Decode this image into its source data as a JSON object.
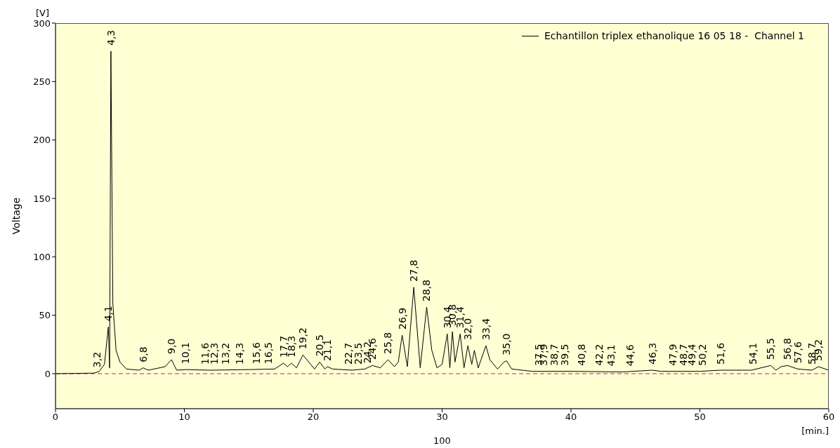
{
  "chart_data": {
    "type": "line",
    "ylabel": "Voltage",
    "xlabel": "[min.]",
    "annotations": [
      "[V]",
      "100",
      {
        "text": "3,2",
        "x": 3.2,
        "y": 0.5
      },
      {
        "text": "4,1",
        "x": 4.1,
        "y": 40
      },
      {
        "text": "4,3",
        "x": 4.3,
        "y": 276
      },
      {
        "text": "6,8",
        "x": 6.8,
        "y": 5
      },
      {
        "text": "9,0",
        "x": 9.0,
        "y": 12
      },
      {
        "text": "10,1",
        "x": 10.1,
        "y": 3.5
      },
      {
        "text": "11,6",
        "x": 11.6,
        "y": 3
      },
      {
        "text": "12,3",
        "x": 12.3,
        "y": 3
      },
      {
        "text": "13,2",
        "x": 13.2,
        "y": 3
      },
      {
        "text": "14,3",
        "x": 14.3,
        "y": 3
      },
      {
        "text": "15,6",
        "x": 15.6,
        "y": 3.5
      },
      {
        "text": "16,5",
        "x": 16.5,
        "y": 3.5
      },
      {
        "text": "17,7",
        "x": 17.7,
        "y": 9
      },
      {
        "text": "18,3",
        "x": 18.3,
        "y": 9
      },
      {
        "text": "19,2",
        "x": 19.2,
        "y": 16
      },
      {
        "text": "20,5",
        "x": 20.5,
        "y": 10
      },
      {
        "text": "21,1",
        "x": 21.1,
        "y": 6
      },
      {
        "text": "22,7",
        "x": 22.7,
        "y": 3
      },
      {
        "text": "23,5",
        "x": 23.5,
        "y": 3
      },
      {
        "text": "24,2",
        "x": 24.2,
        "y": 4
      },
      {
        "text": "24,6",
        "x": 24.6,
        "y": 7
      },
      {
        "text": "25,8",
        "x": 25.8,
        "y": 12
      },
      {
        "text": "26,9",
        "x": 26.9,
        "y": 33
      },
      {
        "text": "27,8",
        "x": 27.8,
        "y": 74
      },
      {
        "text": "28,8",
        "x": 28.8,
        "y": 57
      },
      {
        "text": "30,4",
        "x": 30.4,
        "y": 34
      },
      {
        "text": "30,8",
        "x": 30.8,
        "y": 36
      },
      {
        "text": "31,4",
        "x": 31.4,
        "y": 34
      },
      {
        "text": "32,0",
        "x": 32.0,
        "y": 24
      },
      {
        "text": "33,4",
        "x": 33.4,
        "y": 24
      },
      {
        "text": "35,0",
        "x": 35.0,
        "y": 11
      },
      {
        "text": "37,5",
        "x": 37.5,
        "y": 2
      },
      {
        "text": "37,9",
        "x": 37.9,
        "y": 2
      },
      {
        "text": "38,7",
        "x": 38.7,
        "y": 2
      },
      {
        "text": "39,5",
        "x": 39.5,
        "y": 2
      },
      {
        "text": "40,8",
        "x": 40.8,
        "y": 2
      },
      {
        "text": "42,2",
        "x": 42.2,
        "y": 2
      },
      {
        "text": "43,1",
        "x": 43.1,
        "y": 1.5
      },
      {
        "text": "44,6",
        "x": 44.6,
        "y": 1.5
      },
      {
        "text": "46,3",
        "x": 46.3,
        "y": 3
      },
      {
        "text": "47,9",
        "x": 47.9,
        "y": 2
      },
      {
        "text": "48,7",
        "x": 48.7,
        "y": 2
      },
      {
        "text": "49,4",
        "x": 49.4,
        "y": 2
      },
      {
        "text": "50,2",
        "x": 50.2,
        "y": 2
      },
      {
        "text": "51,6",
        "x": 51.6,
        "y": 3
      },
      {
        "text": "54,1",
        "x": 54.1,
        "y": 3
      },
      {
        "text": "55,5",
        "x": 55.5,
        "y": 7
      },
      {
        "text": "56,8",
        "x": 56.8,
        "y": 7
      },
      {
        "text": "57,6",
        "x": 57.6,
        "y": 4
      },
      {
        "text": "58,7",
        "x": 58.7,
        "y": 3
      },
      {
        "text": "59,2",
        "x": 59.2,
        "y": 6
      }
    ],
    "xlim": [
      0,
      60
    ],
    "xticks": [
      0,
      10,
      20,
      30,
      40,
      50,
      60
    ],
    "ylim": [
      -30,
      300
    ],
    "yticks": [
      0,
      50,
      100,
      150,
      200,
      250,
      300
    ],
    "grid": false,
    "legend": "top right",
    "marker": "none",
    "line_style": "solid",
    "ref_lines": [
      {
        "axis": "y",
        "value": 0,
        "color": "#ff0080",
        "line_style": "dashed"
      }
    ],
    "series": [
      {
        "name": "Echantillon triplex ethanolique 16 05 18 -  Channel 1",
        "color": "#000000",
        "x": [
          0,
          3.0,
          3.4,
          3.8,
          4.1,
          4.2,
          4.3,
          4.45,
          4.7,
          5.0,
          5.5,
          6.5,
          6.8,
          7.2,
          8.5,
          9.0,
          9.4,
          10.1,
          12,
          15,
          17,
          17.7,
          18.0,
          18.3,
          18.7,
          19.2,
          20.1,
          20.5,
          20.9,
          21.1,
          21.5,
          23,
          24,
          24.6,
          25.2,
          25.8,
          26.3,
          26.6,
          26.9,
          27.3,
          27.8,
          28.3,
          28.8,
          29.2,
          29.6,
          30.0,
          30.4,
          30.6,
          30.8,
          31.0,
          31.4,
          31.7,
          32.0,
          32.3,
          32.5,
          32.8,
          33.4,
          33.7,
          34.3,
          34.8,
          35.0,
          35.4,
          37,
          40,
          44,
          46.3,
          47,
          50,
          51.6,
          54,
          55.5,
          55.9,
          56.3,
          56.8,
          57.6,
          58.7,
          59.2,
          60
        ],
        "values": [
          0,
          0.5,
          2,
          8,
          40,
          5,
          276,
          60,
          20,
          10,
          4,
          3,
          5,
          3,
          6,
          12,
          3,
          3.5,
          3,
          3.5,
          4,
          9,
          6,
          9,
          5,
          16,
          4,
          10,
          4,
          6,
          4,
          3,
          4,
          7,
          5,
          12,
          6,
          10,
          33,
          6,
          74,
          5,
          57,
          20,
          5,
          8,
          34,
          5,
          36,
          10,
          34,
          5,
          24,
          8,
          20,
          5,
          24,
          12,
          4,
          10,
          11,
          4,
          2,
          2,
          1.5,
          3,
          2,
          2,
          3,
          3,
          7,
          3,
          6,
          7,
          4,
          3,
          6,
          3
        ]
      }
    ]
  }
}
